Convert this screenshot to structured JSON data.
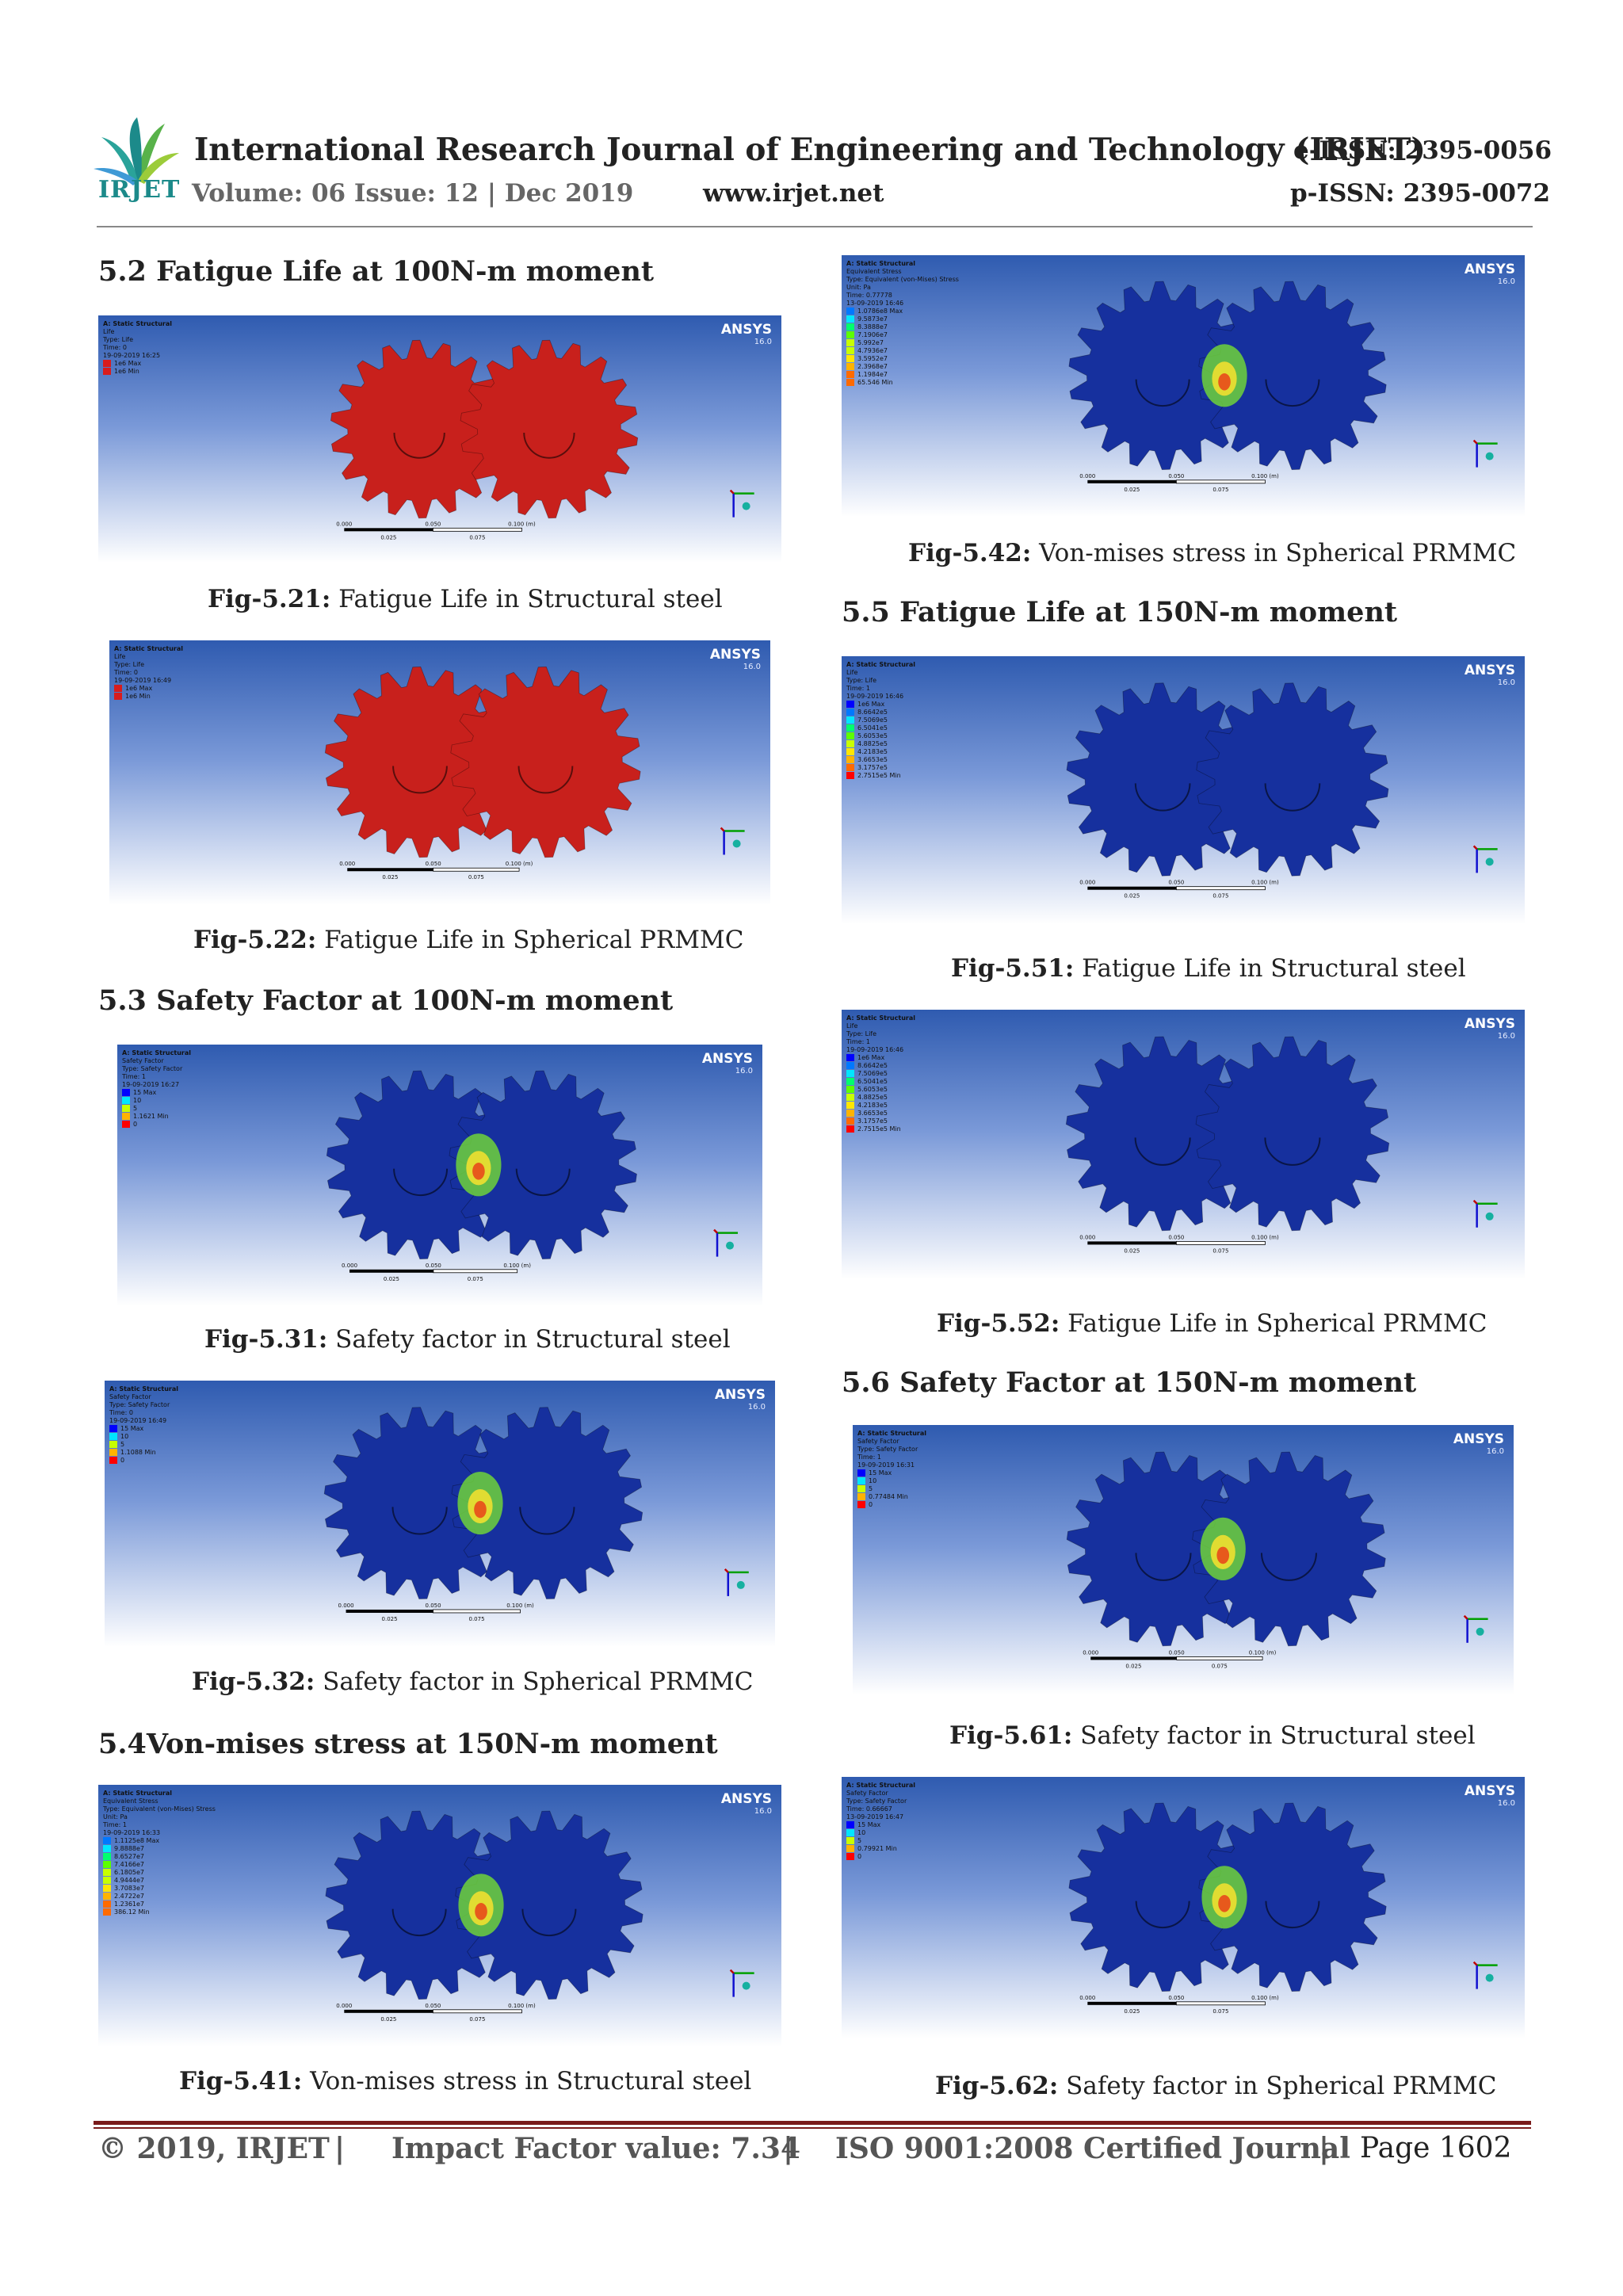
{
  "header": {
    "logo_text": "IRJET",
    "journal_title": "International Research Journal of Engineering and Technology (IRJET)",
    "volume": "Volume: 06 Issue: 12 | Dec 2019",
    "website": "www.irjet.net",
    "e_issn": "e-ISSN: 2395-0056",
    "p_issn": "p-ISSN: 2395-0072"
  },
  "sections": {
    "s52": "5.2 Fatigue Life at 100N-m moment",
    "s53": "5.3 Safety Factor at 100N-m moment",
    "s54": "5.4Von-mises stress at 150N-m moment",
    "s55": "5.5 Fatigue Life at 150N-m moment",
    "s56": "5.6 Safety Factor at 150N-m moment"
  },
  "figures": [
    {
      "id": "f521",
      "label": "Fig-5.21:",
      "caption": " Fatigue Life in Structural steel",
      "legend": [
        "A: Static Structural",
        "Life",
        "Type: Life",
        "Time: 0",
        "19-09-2019 16:25",
        "1e6 Max",
        "1e6 Min"
      ],
      "gear_color": "#c8201c",
      "hot": false
    },
    {
      "id": "f522",
      "label": "Fig-5.22:",
      "caption": " Fatigue Life in Spherical PRMMC",
      "legend": [
        "A: Static Structural",
        "Life",
        "Type: Life",
        "Time: 0",
        "19-09-2019 16:49",
        "1e6 Max",
        "1e6 Min"
      ],
      "gear_color": "#c8201c",
      "hot": false
    },
    {
      "id": "f531",
      "label": "Fig-5.31:",
      "caption": " Safety factor in Structural steel",
      "legend": [
        "A: Static Structural",
        "Safety Factor",
        "Type: Safety Factor",
        "Time: 1",
        "19-09-2019 16:27",
        "15 Max",
        "10",
        "5",
        "1.1621 Min",
        "0"
      ],
      "gear_color": "#16309e",
      "hot": true
    },
    {
      "id": "f532",
      "label": "Fig-5.32:",
      "caption": " Safety factor in Spherical PRMMC",
      "legend": [
        "A: Static Structural",
        "Safety Factor",
        "Type: Safety Factor",
        "Time: 0",
        "19-09-2019 16:49",
        "15 Max",
        "10",
        "5",
        "1.1088 Min",
        "0"
      ],
      "gear_color": "#16309e",
      "hot": true
    },
    {
      "id": "f541",
      "label": "Fig-5.41:",
      "caption": " Von-mises stress in Structural steel",
      "legend": [
        "A: Static Structural",
        "Equivalent Stress",
        "Type: Equivalent (von-Mises) Stress",
        "Unit: Pa",
        "Time: 1",
        "19-09-2019 16:33",
        "1.1125e8 Max",
        "9.8888e7",
        "8.6527e7",
        "7.4166e7",
        "6.1805e7",
        "4.9444e7",
        "3.7083e7",
        "2.4722e7",
        "1.2361e7",
        "386.12 Min"
      ],
      "gear_color": "#16309e",
      "hot": true
    },
    {
      "id": "f542",
      "label": "Fig-5.42:",
      "caption": " Von-mises stress in Spherical PRMMC",
      "legend": [
        "A: Static Structural",
        "Equivalent Stress",
        "Type: Equivalent (von-Mises) Stress",
        "Unit: Pa",
        "Time: 0.77778",
        "13-09-2019 16:46",
        "1.0786e8 Max",
        "9.5873e7",
        "8.3888e7",
        "7.1906e7",
        "5.992e7",
        "4.7936e7",
        "3.5952e7",
        "2.3968e7",
        "1.1984e7",
        "65.546 Min"
      ],
      "gear_color": "#16309e",
      "hot": true
    },
    {
      "id": "f551",
      "label": "Fig-5.51:",
      "caption": " Fatigue Life in Structural steel",
      "legend": [
        "A: Static Structural",
        "Life",
        "Type: Life",
        "Time: 1",
        "19-09-2019 16:46",
        "1e6 Max",
        "8.6642e5",
        "7.5069e5",
        "6.5041e5",
        "5.6053e5",
        "4.8825e5",
        "4.2183e5",
        "3.6653e5",
        "3.1757e5",
        "2.7515e5 Min"
      ],
      "gear_color": "#16309e",
      "hot": false
    },
    {
      "id": "f552",
      "label": "Fig-5.52:",
      "caption": " Fatigue Life in Spherical PRMMC",
      "legend": [
        "A: Static Structural",
        "Life",
        "Type: Life",
        "Time: 1",
        "19-09-2019 16:46",
        "1e6 Max",
        "8.6642e5",
        "7.5069e5",
        "6.5041e5",
        "5.6053e5",
        "4.8825e5",
        "4.2183e5",
        "3.6653e5",
        "3.1757e5",
        "2.7515e5 Min"
      ],
      "gear_color": "#16309e",
      "hot": false
    },
    {
      "id": "f561",
      "label": "Fig-5.61:",
      "caption": " Safety factor in Structural steel",
      "legend": [
        "A: Static Structural",
        "Safety Factor",
        "Type: Safety Factor",
        "Time: 1",
        "19-09-2019 16:31",
        "15 Max",
        "10",
        "5",
        "0.77484 Min",
        "0"
      ],
      "gear_color": "#16309e",
      "hot": true
    },
    {
      "id": "f562",
      "label": "Fig-5.62:",
      "caption": " Safety factor in Spherical PRMMC",
      "legend": [
        "A: Static Structural",
        "Safety Factor",
        "Type: Safety Factor",
        "Time: 0.66667",
        "13-09-2019 16:47",
        "15 Max",
        "10",
        "5",
        "0.79921 Min",
        "0"
      ],
      "gear_color": "#16309e",
      "hot": true
    }
  ],
  "ansys": {
    "brand": "ANSYS",
    "version": "16.0"
  },
  "scale": {
    "t0": "0.000",
    "t1": "0.050",
    "t2": "0.100 (m)",
    "b1": "0.025",
    "b2": "0.075"
  },
  "footer": {
    "copyright": "© 2019, IRJET",
    "sep": "|",
    "impact": "Impact Factor value: 7.34",
    "iso": "ISO 9001:2008 Certified Journal",
    "page": "Page 1602"
  }
}
